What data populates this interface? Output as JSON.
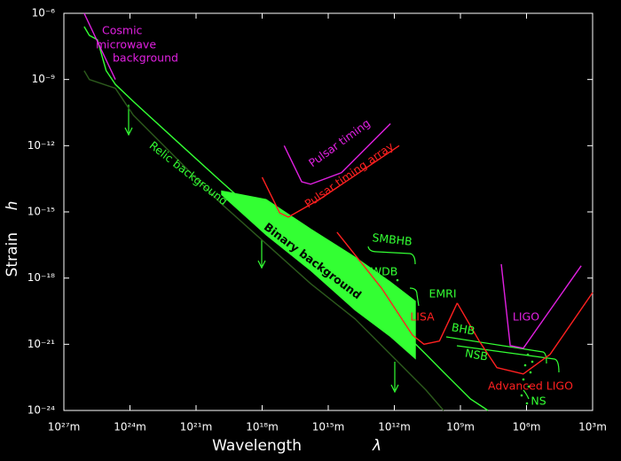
{
  "chart_data": {
    "type": "line",
    "xscale": "log",
    "yscale": "log",
    "xlabel": "Wavelength",
    "xlabel_symbol": "λ",
    "ylabel": "Strain",
    "ylabel_symbol": "h",
    "xlim": [
      1e+27,
      1000.0
    ],
    "ylim": [
      1e-24,
      1e-06
    ],
    "xticks": [
      {
        "value": 1e+27,
        "label": "10²⁷m"
      },
      {
        "value": 1e+24,
        "label": "10²⁴m"
      },
      {
        "value": 1e+21,
        "label": "10²¹m"
      },
      {
        "value": 1e+18,
        "label": "10¹⁸m"
      },
      {
        "value": 1000000000000000.0,
        "label": "10¹⁵m"
      },
      {
        "value": 1000000000000.0,
        "label": "10¹²m"
      },
      {
        "value": 1000000000.0,
        "label": "10⁹m"
      },
      {
        "value": 1000000.0,
        "label": "10⁶m"
      },
      {
        "value": 1000.0,
        "label": "10³m"
      }
    ],
    "yticks": [
      {
        "value": 1e-24,
        "label": "10⁻²⁴"
      },
      {
        "value": 1e-21,
        "label": "10⁻²¹"
      },
      {
        "value": 1e-18,
        "label": "10⁻¹⁸"
      },
      {
        "value": 1e-15,
        "label": "10⁻¹⁵"
      },
      {
        "value": 1e-12,
        "label": "10⁻¹²"
      },
      {
        "value": 1e-09,
        "label": "10⁻⁹"
      },
      {
        "value": 1e-06,
        "label": "10⁻⁶"
      }
    ],
    "series": [
      {
        "color": "#2c5a1c",
        "x": [
          1.2e+26,
          7e+25,
          4.6e+24,
          7e+23,
          7e+21,
          7e+19,
          6.6e+17,
          6300000000000000.0,
          60000000000000.0,
          600000000000.0,
          37000000000.0,
          5800000000.0
        ],
        "values": [
          2.5e-09,
          1e-09,
          4e-10,
          2.4e-11,
          2.4e-13,
          2.3e-15,
          3.6e-17,
          5.6e-19,
          1.4e-20,
          1.4e-22,
          8.5e-24,
          1e-24
        ]
      },
      {
        "color": "#33ff33",
        "x": [
          1.2e+26,
          7e+25,
          3e+25,
          1.2e+25,
          4.6e+24,
          7e+23,
          7e+21,
          7e+19,
          6.6e+17,
          6300000000000000.0,
          60000000000000.0,
          600000000000.0,
          37000000000.0,
          5800000000.0,
          360000000.0,
          56000000.0
        ],
        "values": [
          2.5e-07,
          1e-07,
          6.3e-08,
          2.5e-09,
          6e-10,
          1e-10,
          1.5e-12,
          2.3e-14,
          3.6e-16,
          9e-18,
          2.2e-19,
          5.5e-21,
          3.5e-22,
          5.4e-23,
          3.4e-24,
          1e-24
        ]
      },
      {
        "color": "#33ff33",
        "x": [
          7e+19,
          6.6e+17,
          6300000000000000.0,
          60000000000000.0,
          1500000000000.0,
          110000000000.0
        ],
        "values": [
          9e-15,
          3.7e-15,
          1.7e-16,
          9e-18,
          6.7e-19,
          9e-20
        ],
        "lower": [
          6e-15,
          9e-17,
          2.2e-18,
          3.5e-20,
          2.2e-21,
          2.2e-22
        ]
      },
      {
        "color": "#e020e0",
        "x": [
          1.2e+26,
          4.6e+24
        ],
        "values": [
          1e-06,
          1e-09
        ]
      },
      {
        "color": "#e020e0",
        "x": [
          1e+17,
          1.6e+16,
          6300000000000000.0,
          250000000000000.0,
          1500000000000.0
        ],
        "values": [
          1e-12,
          2.3e-14,
          1.8e-14,
          6e-14,
          1e-11
        ]
      },
      {
        "color": "#ff2020",
        "x": [
          1e+18,
          1.6e+17,
          6.5e+16,
          2500000000000000.0,
          600000000000.0
        ],
        "values": [
          3.7e-14,
          9e-16,
          5.8e-16,
          3.7e-15,
          1e-12
        ]
      },
      {
        "color": "#ff2020",
        "x": [
          400000000000000.0,
          3800000000000.0,
          150000000000.0,
          45000000000.0,
          9000000000.0,
          1400000000.0
        ],
        "values": [
          1.2e-16,
          3.5e-19,
          2.6e-21,
          1e-21,
          1.4e-21,
          7.4e-20
        ]
      },
      {
        "color": "#ff2020",
        "x": [
          1400000000.0,
          140000000.0,
          22000000.0,
          1400000.0,
          85000.0,
          1000.0
        ],
        "values": [
          7.4e-20,
          1.4e-21,
          8.7e-23,
          4.5e-23,
          3.5e-22,
          2.2e-19
        ]
      },
      {
        "color": "#e020e0",
        "x": [
          14000000.0,
          5500000.0,
          1400000.0,
          3300.0
        ],
        "values": [
          4.3e-18,
          8.7e-22,
          6.6e-22,
          3.6e-18
        ]
      }
    ],
    "annotations": [
      {
        "text": "Cosmic",
        "color": "#e020e0"
      },
      {
        "text": "microwave",
        "color": "#e020e0"
      },
      {
        "text": "background",
        "color": "#e020e0"
      },
      {
        "text": "Pulsar timing",
        "color": "#e020e0"
      },
      {
        "text": "Pulsar timing array",
        "color": "#ff2020"
      },
      {
        "text": "Relic background",
        "color": "#33ff33"
      },
      {
        "text": "Binary background",
        "color": "#000000"
      },
      {
        "text": "SMBHB",
        "color": "#33ff33"
      },
      {
        "text": "WDB",
        "color": "#33ff33"
      },
      {
        "text": "EMRI",
        "color": "#33ff33"
      },
      {
        "text": "LISA",
        "color": "#ff2020"
      },
      {
        "text": "BHB",
        "color": "#33ff33"
      },
      {
        "text": "NSB",
        "color": "#33ff33"
      },
      {
        "text": "LIGO",
        "color": "#e020e0"
      },
      {
        "text": "Advanced LIGO",
        "color": "#ff2020"
      },
      {
        "text": "NS",
        "color": "#33ff33"
      }
    ]
  }
}
